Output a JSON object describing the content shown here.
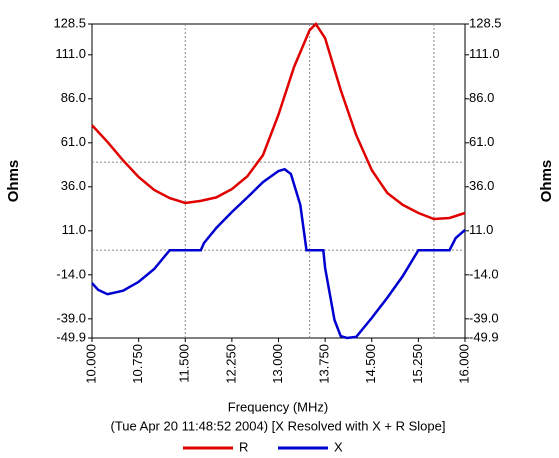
{
  "chart_data": {
    "type": "line",
    "y_label": "Ohms",
    "x_label": "Frequency (MHz)",
    "subtitle": "(Tue Apr 20 11:48:52 2004) [X Resolved with X + R Slope]",
    "xlim": [
      10,
      16
    ],
    "xticks": [
      {
        "value": 10,
        "label": "10.000"
      },
      {
        "value": 10.75,
        "label": "10.750"
      },
      {
        "value": 11.5,
        "label": "11.500"
      },
      {
        "value": 12.25,
        "label": "12.250"
      },
      {
        "value": 13,
        "label": "13.000"
      },
      {
        "value": 13.75,
        "label": "13.750"
      },
      {
        "value": 14.5,
        "label": "14.500"
      },
      {
        "value": 15.25,
        "label": "15.250"
      },
      {
        "value": 16,
        "label": "16.000"
      }
    ],
    "ylim": [
      -49.9,
      128.5
    ],
    "yticks": [
      128.5,
      {
        "value": 111,
        "label": "111.0"
      },
      {
        "value": 86,
        "label": "86.0"
      },
      {
        "value": 61,
        "label": "61.0"
      },
      {
        "value": 36,
        "label": "36.0"
      },
      {
        "value": 11,
        "label": "11.0"
      },
      {
        "value": -14,
        "label": "-14.0"
      },
      {
        "value": -39,
        "label": "-39.0"
      },
      -49.9
    ],
    "grid_x": [
      11.5,
      13.5,
      15.5
    ],
    "grid_y": [
      0,
      50
    ],
    "series": [
      {
        "name": "R",
        "color": "#e00000",
        "x": [
          10,
          10.25,
          10.5,
          10.75,
          11,
          11.25,
          11.5,
          11.75,
          12,
          12.25,
          12.5,
          12.75,
          13,
          13.25,
          13.5,
          13.6,
          13.75,
          14,
          14.25,
          14.5,
          14.75,
          15,
          15.25,
          15.5,
          15.75,
          16
        ],
        "values": [
          71,
          61.5,
          51,
          41.6,
          34.2,
          29.6,
          26.8,
          28,
          30,
          34.7,
          42,
          54,
          77,
          104,
          125,
          128.5,
          120.5,
          91,
          65.4,
          45.5,
          32.5,
          25.7,
          21.1,
          17.7,
          18.3,
          21.1
        ]
      },
      {
        "name": "X",
        "color": "#0000d0",
        "x": [
          10,
          10.1,
          10.25,
          10.5,
          10.75,
          11,
          11.25,
          11.5,
          11.75,
          11.8,
          12,
          12.25,
          12.5,
          12.75,
          13,
          13.1,
          13.2,
          13.35,
          13.45,
          13.6,
          13.72,
          13.75,
          13.9,
          14,
          14.1,
          14.25,
          14.5,
          14.75,
          15,
          15.25,
          15.5,
          15.75,
          15.85,
          16
        ],
        "values": [
          -18.7,
          -22.6,
          -25,
          -23,
          -18,
          -10.7,
          0,
          0,
          0,
          4,
          12.6,
          21.7,
          30,
          38.7,
          45,
          46,
          43.3,
          25.7,
          0,
          0,
          0,
          -10,
          -39.7,
          -48.8,
          -49.9,
          -49.3,
          -38.5,
          -27,
          -14.7,
          0,
          0,
          0,
          6.9,
          11.5
        ]
      }
    ]
  }
}
